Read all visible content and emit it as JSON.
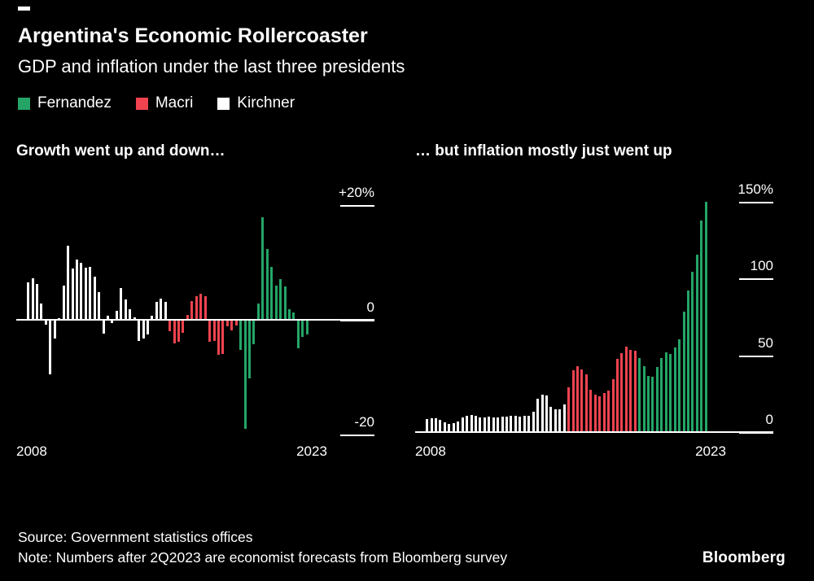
{
  "header": {
    "title": "Argentina's Economic Rollercoaster",
    "subtitle": "GDP and inflation under the last three presidents"
  },
  "legend": {
    "items": [
      {
        "label": "Fernandez",
        "color": "#24a567"
      },
      {
        "label": "Macri",
        "color": "#f0434f"
      },
      {
        "label": "Kirchner",
        "color": "#ffffff"
      }
    ]
  },
  "chart_data": [
    {
      "type": "bar",
      "title": "Growth went up and down…",
      "unit": "percent, quarterly",
      "frequency": "quarterly",
      "x_start_label": "2008",
      "x_end_label": "2023",
      "ylim": [
        -20.7,
        25
      ],
      "y_ticks": [
        {
          "label": "+20%",
          "value": 20
        },
        {
          "label": "0",
          "value": 0
        },
        {
          "label": "-20",
          "value": -20
        }
      ],
      "segments": [
        {
          "name": "Kirchner",
          "color": "#ffffff",
          "values": [
            6.5,
            7.2,
            6.2,
            2.8,
            -0.8,
            -9.5,
            -3.2,
            0.3,
            6.0,
            13.0,
            9.0,
            10.5,
            9.9,
            9.1,
            9.3,
            7.5,
            4.8,
            -2.4,
            0.7,
            -0.5,
            1.6,
            5.5,
            3.5,
            1.9,
            0.4,
            -3.6,
            -3.2,
            -2.5,
            0.7,
            3.1,
            3.7,
            3.2
          ]
        },
        {
          "name": "Macri",
          "color": "#f0434f",
          "values": [
            -2.0,
            -4.1,
            -3.8,
            -2.2,
            0.9,
            3.3,
            4.2,
            4.5,
            4.1,
            -3.8,
            -3.7,
            -6.1,
            -5.9,
            -1.1,
            -1.8,
            -1.0
          ]
        },
        {
          "name": "Fernandez",
          "color": "#24a567",
          "values": [
            -5.2,
            -19.0,
            -10.2,
            -4.3,
            2.9,
            17.9,
            12.4,
            9.3,
            6.0,
            7.1,
            5.9,
            1.9,
            1.3,
            -4.9,
            -3.0,
            -2.5
          ]
        }
      ]
    },
    {
      "type": "bar",
      "title": "… but inflation mostly just went up",
      "unit": "percent, quarterly",
      "frequency": "quarterly",
      "x_start_label": "2008",
      "x_end_label": "2023",
      "ylim": [
        -4.2,
        166.4
      ],
      "y_ticks": [
        {
          "label": "150%",
          "value": 150
        },
        {
          "label": "100",
          "value": 100
        },
        {
          "label": "50",
          "value": 50
        },
        {
          "label": "0",
          "value": 0
        }
      ],
      "segments": [
        {
          "name": "Kirchner",
          "color": "#ffffff",
          "values": [
            8.5,
            9.1,
            8.9,
            8.0,
            6.5,
            5.5,
            5.9,
            7.1,
            9.7,
            10.6,
            11.1,
            10.9,
            9.7,
            9.8,
            9.9,
            9.5,
            9.8,
            9.9,
            10.0,
            10.6,
            10.6,
            10.3,
            10.5,
            10.9,
            13.5,
            21.8,
            24.5,
            23.9,
            16.5,
            15.0,
            14.8,
            18.0
          ]
        },
        {
          "name": "Macri",
          "color": "#f0434f",
          "values": [
            29.0,
            40.5,
            43.1,
            41.0,
            37.8,
            27.5,
            24.2,
            23.3,
            25.4,
            27.3,
            34.3,
            47.6,
            51.3,
            55.8,
            53.5,
            52.9
          ]
        },
        {
          "name": "Fernandez",
          "color": "#24a567",
          "values": [
            48.4,
            42.8,
            36.6,
            36.1,
            42.6,
            48.3,
            51.8,
            50.9,
            55.1,
            60.7,
            78.5,
            92.4,
            104.3,
            115.6,
            138.0,
            150.0
          ]
        }
      ]
    }
  ],
  "footer": {
    "source": "Source: Government statistics offices",
    "note": "Note: Numbers after 2Q2023 are economist forecasts from Bloomberg survey",
    "logo": "Bloomberg"
  }
}
